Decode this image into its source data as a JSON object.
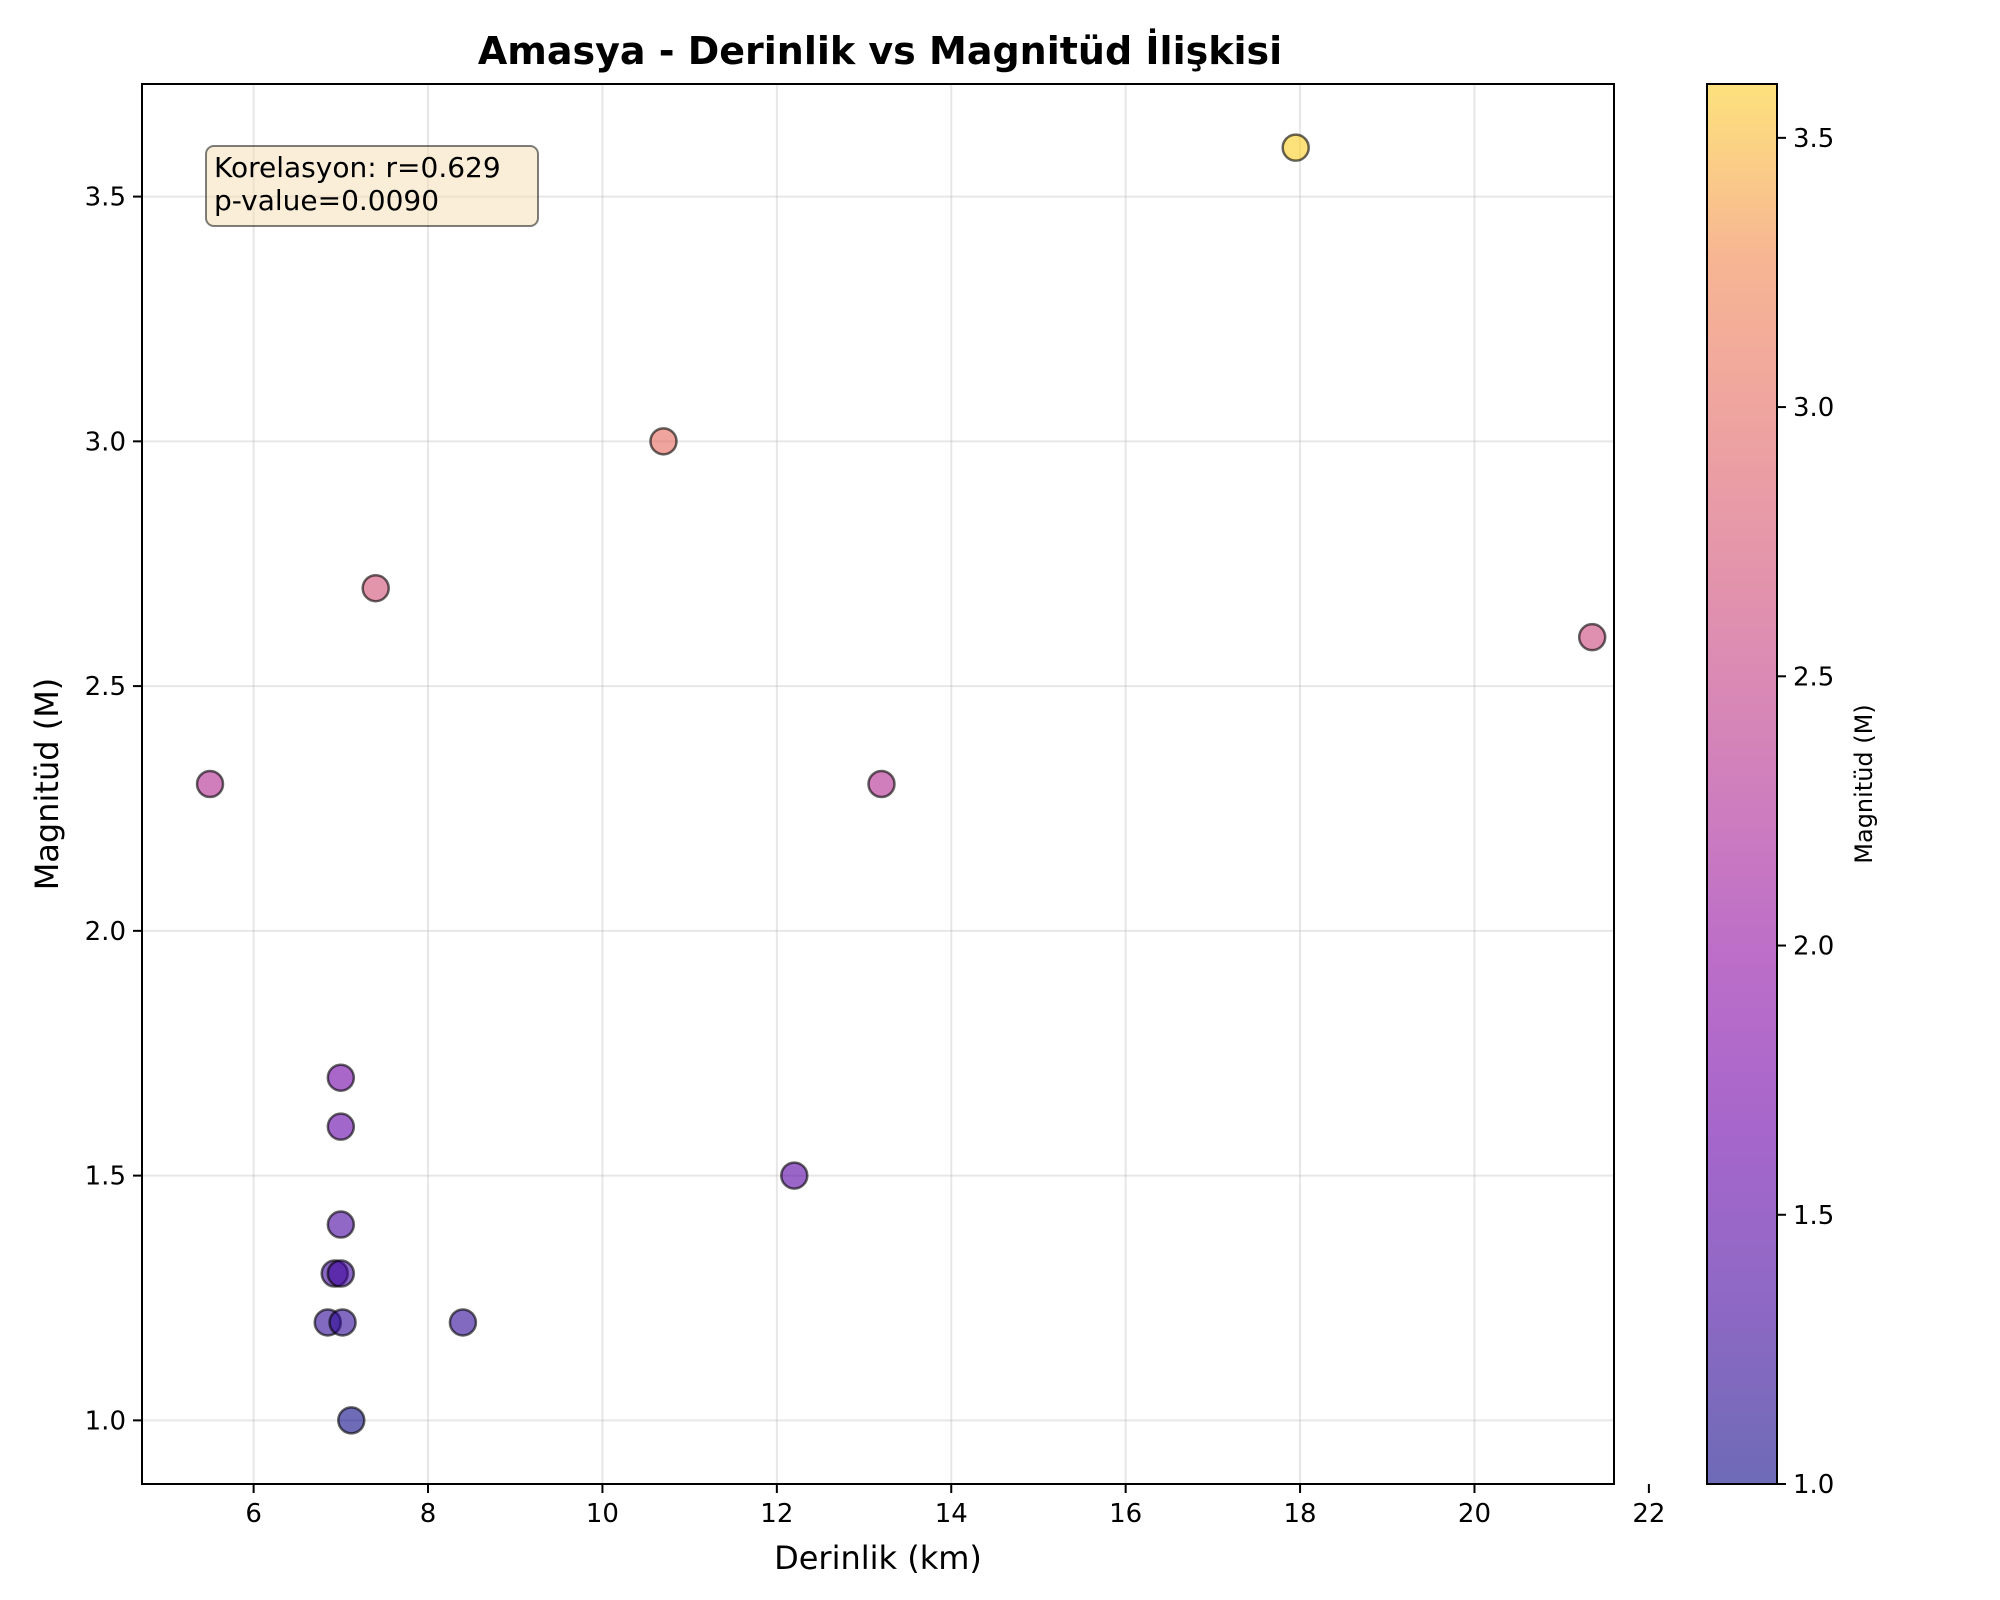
{
  "chart_data": {
    "type": "scatter",
    "title": "Amasya - Derinlik vs Magnitüd İlişkisi",
    "xlabel": "Derinlik (km)",
    "ylabel": "Magnitüd (M)",
    "xlim": [
      4.72,
      21.6
    ],
    "ylim": [
      0.87,
      3.73
    ],
    "xticks": [
      6,
      8,
      10,
      12,
      14,
      16,
      18,
      20,
      22
    ],
    "xtick_labels": [
      "6",
      "8",
      "10",
      "12",
      "14",
      "16",
      "18",
      "20",
      "22"
    ],
    "yticks": [
      1.0,
      1.5,
      2.0,
      2.5,
      3.0,
      3.5
    ],
    "ytick_labels": [
      "1.0",
      "1.5",
      "2.0",
      "2.5",
      "3.0",
      "3.5"
    ],
    "grid": true,
    "colormap": "plasma",
    "marker_alpha": 0.6,
    "colorbar": {
      "label": "Magnitüd (M)",
      "range": [
        1.0,
        3.6
      ],
      "ticks": [
        1.0,
        1.5,
        2.0,
        2.5,
        3.0,
        3.5
      ],
      "tick_labels": [
        "1.0",
        "1.5",
        "2.0",
        "2.5",
        "3.0",
        "3.5"
      ]
    },
    "annotation": {
      "lines": [
        "Korelasyon: r=0.629",
        "p-value=0.0090"
      ],
      "placement": "top-left"
    },
    "points": [
      {
        "x": 5.5,
        "y": 2.3
      },
      {
        "x": 7.4,
        "y": 2.7
      },
      {
        "x": 10.7,
        "y": 3.0
      },
      {
        "x": 17.95,
        "y": 3.6
      },
      {
        "x": 21.35,
        "y": 2.6
      },
      {
        "x": 13.2,
        "y": 2.3
      },
      {
        "x": 12.2,
        "y": 1.5
      },
      {
        "x": 7.0,
        "y": 1.7
      },
      {
        "x": 7.0,
        "y": 1.6
      },
      {
        "x": 7.0,
        "y": 1.4
      },
      {
        "x": 6.93,
        "y": 1.3
      },
      {
        "x": 7.0,
        "y": 1.3
      },
      {
        "x": 6.85,
        "y": 1.2
      },
      {
        "x": 7.02,
        "y": 1.2
      },
      {
        "x": 8.4,
        "y": 1.2
      },
      {
        "x": 7.12,
        "y": 1.0
      }
    ]
  }
}
